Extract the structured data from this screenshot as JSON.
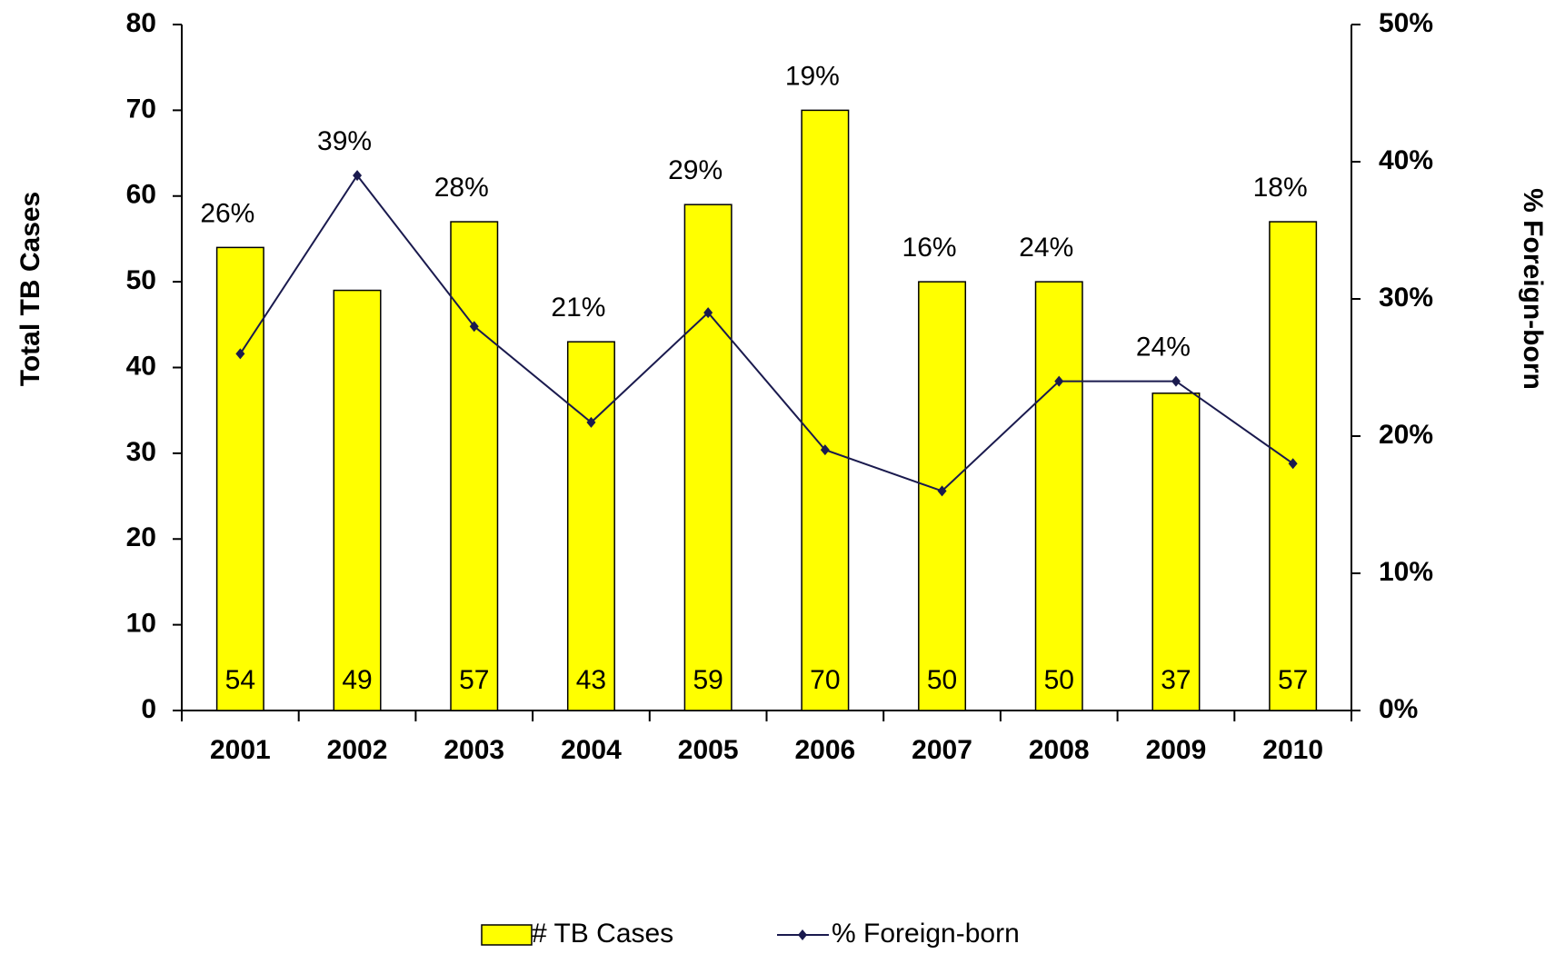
{
  "chart_data": {
    "type": "bar",
    "categories": [
      "2001",
      "2002",
      "2003",
      "2004",
      "2005",
      "2006",
      "2007",
      "2008",
      "2009",
      "2010"
    ],
    "ylabel": "Total TB Cases",
    "y2label": "% Foreign-born",
    "ylim": [
      0,
      80
    ],
    "yticks": [
      0,
      10,
      20,
      30,
      40,
      50,
      60,
      70,
      80
    ],
    "y2lim": [
      0,
      50
    ],
    "y2ticks": [
      {
        "value": 0,
        "label": "0%"
      },
      {
        "value": 10,
        "label": "10%"
      },
      {
        "value": 20,
        "label": "20%"
      },
      {
        "value": 30,
        "label": "30%"
      },
      {
        "value": 40,
        "label": "40%"
      },
      {
        "value": 50,
        "label": "50%"
      }
    ],
    "grid": false,
    "legend": "bottom",
    "series": [
      {
        "name": "# TB Cases",
        "type": "bar",
        "color": "#ffff00",
        "values": [
          54,
          49,
          57,
          43,
          59,
          70,
          50,
          50,
          37,
          57
        ]
      },
      {
        "name": "% Foreign-born",
        "type": "line",
        "axis": "y2",
        "color": "#1a1a4e",
        "values": [
          26,
          39,
          28,
          21,
          29,
          19,
          16,
          24,
          24,
          18
        ],
        "value_labels": [
          "26%",
          "39%",
          "28%",
          "21%",
          "29%",
          "19%",
          "16%",
          "24%",
          "24%",
          "18%"
        ]
      }
    ]
  }
}
